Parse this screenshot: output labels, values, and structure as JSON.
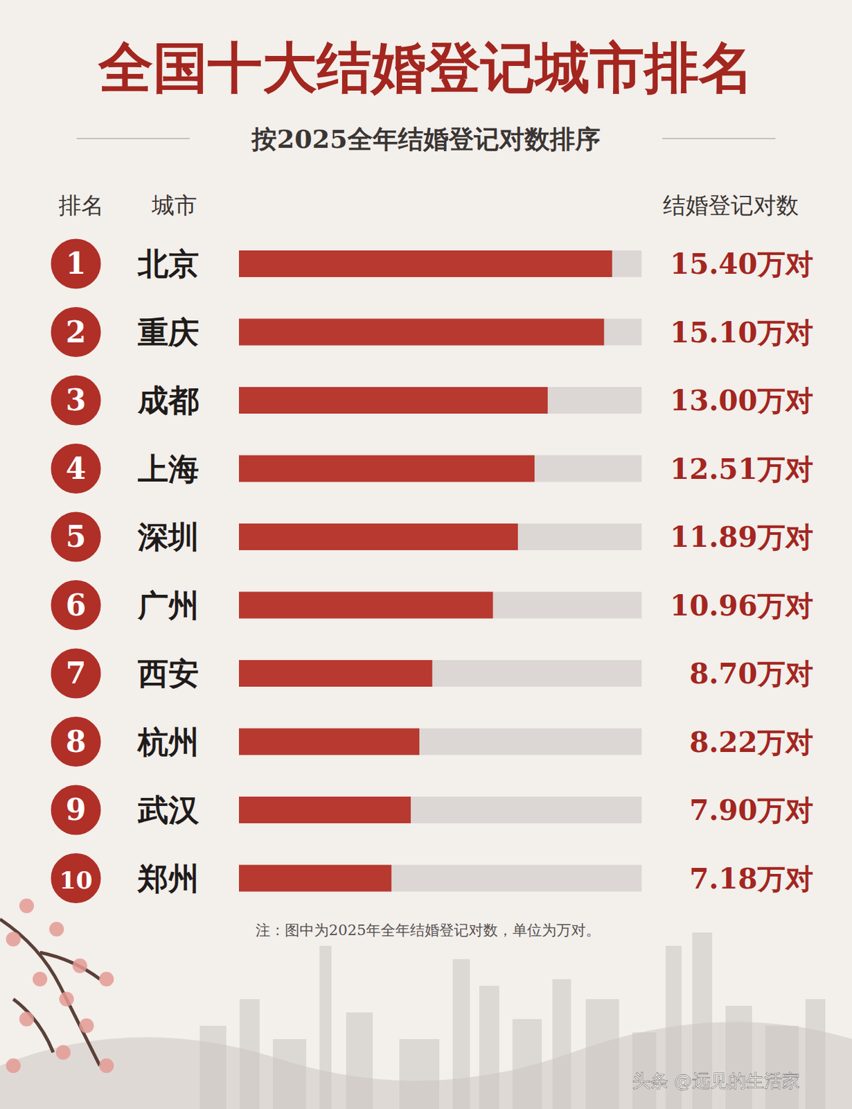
{
  "chart_data": {
    "type": "bar",
    "orientation": "horizontal",
    "title": "全国十大结婚登记城市排名",
    "subtitle": "按2025全年结婚登记对数排序",
    "header_labels": {
      "rank": "排名",
      "city": "城市",
      "value": "结婚登记对数"
    },
    "ranks": [
      1,
      2,
      3,
      4,
      5,
      6,
      7,
      8,
      9,
      10
    ],
    "categories": [
      "北京",
      "重庆",
      "成都",
      "上海",
      "深圳",
      "广州",
      "西安",
      "杭州",
      "武汉",
      "郑州"
    ],
    "values": [
      15.4,
      15.1,
      13.0,
      12.51,
      11.89,
      10.96,
      8.7,
      8.22,
      7.9,
      7.18
    ],
    "value_labels": [
      "15.40万对",
      "15.10万对",
      "13.00万对",
      "12.51万对",
      "11.89万对",
      "10.96万对",
      "8.70万对",
      "8.22万对",
      "7.90万对",
      "7.18万对"
    ],
    "color": "#b8392f",
    "xlim": [
      1.5,
      16.5
    ],
    "tick_labels": false,
    "grid": false,
    "data_labels": true,
    "note": "注：图中为2025年全年结婚登记对数，单位为万对。",
    "watermark": "头条 @远见的生活家"
  }
}
